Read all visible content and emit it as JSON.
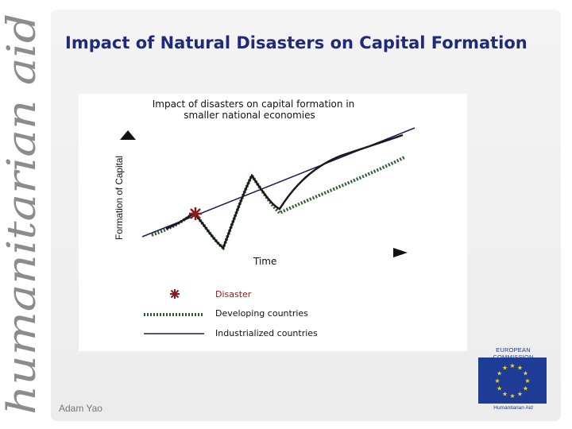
{
  "slide": {
    "title": "Impact of Natural Disasters on Capital Formation",
    "side_brand": "humanitarian aid",
    "author": "Adam Yao"
  },
  "logo": {
    "name": "EUROPEAN COMMISSION",
    "subtitle": "Humanitarian Aid",
    "flag_icon": "eu-flag-icon",
    "flag_color": "#1e3c96",
    "star_color": "#f2d21a"
  },
  "figure": {
    "title_line1": "Impact of disasters on capital formation in",
    "title_line2": "smaller national economies",
    "y_axis_label": "Formation of Capital",
    "x_axis_label": "Time",
    "legend": [
      {
        "label": "Disaster",
        "marker": "asterisk-icon",
        "color": "#8b1a1a"
      },
      {
        "label": "Developing countries",
        "marker": "dotted-line",
        "color": "#2f5f2f"
      },
      {
        "label": "Industrialized countries",
        "marker": "solid-line",
        "color": "#1a1a5e"
      }
    ]
  }
}
